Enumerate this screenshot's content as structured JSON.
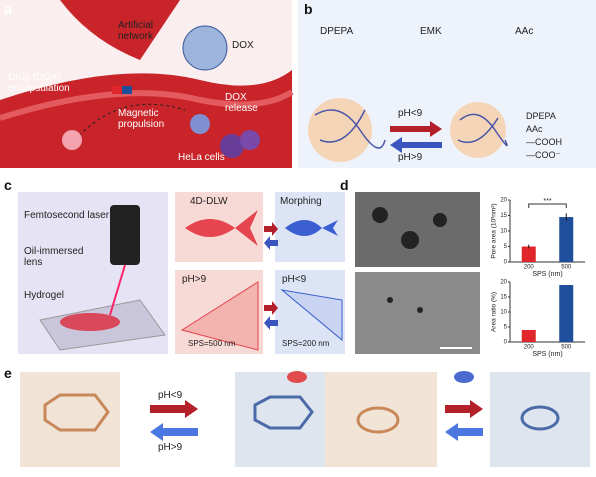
{
  "panels": {
    "a": {
      "label": "a",
      "network": "Artificial network",
      "dox": "DOX",
      "encapsulation": "Drug (DOX) encapsulation",
      "release": "DOX release",
      "propulsion": "Magnetic propulsion",
      "cells": "HeLa cells"
    },
    "b": {
      "label": "b",
      "monomers": [
        "DPEPA",
        "EMK",
        "AAc"
      ],
      "acid": "pH<9",
      "base": "pH>9",
      "legend": [
        "DPEPA",
        "AAc",
        "—COOH",
        "—COO⁻"
      ]
    },
    "c": {
      "label": "c",
      "laser": "Femtosecond laser",
      "lens": "Oil-immersed lens",
      "hydrogel": "Hydrogel",
      "print": "4D-DLW",
      "morph": "Morphing",
      "high": "pH>9",
      "low": "pH<9",
      "sps_large": "SPS=500 nm",
      "sps_small": "SPS=200 nm"
    },
    "d": {
      "label": "d"
    },
    "e": {
      "label": "e",
      "acid": "pH<9",
      "base": "pH>9"
    }
  },
  "chart_data": [
    {
      "type": "bar",
      "y_label": "Pore area (10³nm²)",
      "x_label": "SPS (nm)",
      "categories": [
        "200",
        "500"
      ],
      "values": [
        5,
        14.5
      ],
      "errors": [
        0.6,
        1.2
      ],
      "colors": [
        "#e0262a",
        "#1f4e9c"
      ],
      "annotation": "***",
      "ylim": [
        0,
        20
      ],
      "yticks": [
        0,
        5,
        10,
        15,
        20
      ]
    },
    {
      "type": "bar",
      "y_label": "Area ratio (%)",
      "x_label": "SPS (nm)",
      "categories": [
        "200",
        "500"
      ],
      "values": [
        4,
        19
      ],
      "colors": [
        "#e0262a",
        "#1f4e9c"
      ],
      "ylim": [
        0,
        20
      ],
      "yticks": [
        0,
        5,
        10,
        15,
        20
      ]
    }
  ]
}
